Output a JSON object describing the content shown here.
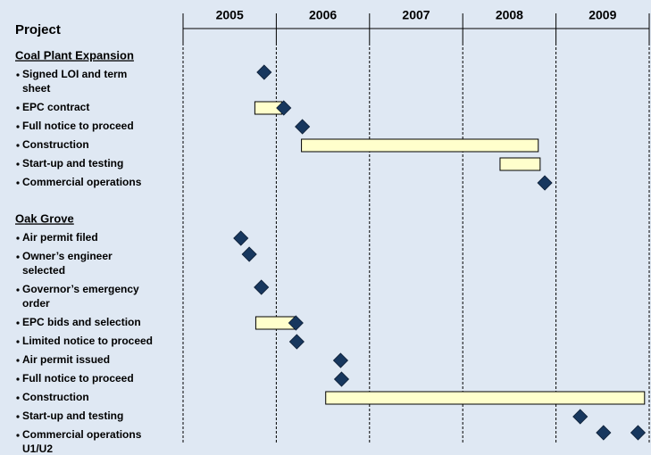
{
  "chart_data": {
    "type": "gantt",
    "title": "Project",
    "categories": [
      "2005",
      "2006",
      "2007",
      "2008",
      "2009"
    ],
    "xlim": [
      2005,
      2010
    ],
    "bar_color": "#ffffcc",
    "milestone_color": "#17375e",
    "groups": [
      {
        "name": "Coal Plant Expansion",
        "tasks": [
          {
            "label": [
              "Signed LOI and term",
              "sheet"
            ],
            "milestones": [
              2005.87
            ]
          },
          {
            "label": [
              "EPC contract"
            ],
            "bar": [
              2005.77,
              2006.06
            ],
            "milestones": [
              2006.08
            ]
          },
          {
            "label": [
              "Full notice to proceed"
            ],
            "milestones": [
              2006.28
            ]
          },
          {
            "label": [
              "Construction"
            ],
            "bar": [
              2006.27,
              2008.81
            ]
          },
          {
            "label": [
              "Start-up and testing"
            ],
            "bar": [
              2008.4,
              2008.83
            ]
          },
          {
            "label": [
              "Commercial operations"
            ],
            "milestones": [
              2008.88
            ]
          }
        ]
      },
      {
        "name": "Oak Grove",
        "tasks": [
          {
            "label": [
              "Air permit filed"
            ],
            "milestones": [
              2005.62
            ]
          },
          {
            "label": [
              "Owner’s engineer",
              "selected"
            ],
            "milestones": [
              2005.71
            ]
          },
          {
            "label": [
              "Governor’s emergency",
              "order"
            ],
            "milestones": [
              2005.84
            ]
          },
          {
            "label": [
              "EPC bids and selection"
            ],
            "bar": [
              2005.78,
              2006.21
            ],
            "milestones": [
              2006.21
            ]
          },
          {
            "label": [
              "Limited notice to proceed"
            ],
            "milestones": [
              2006.22
            ]
          },
          {
            "label": [
              "Air permit issued"
            ],
            "milestones": [
              2006.69
            ]
          },
          {
            "label": [
              "Full notice to proceed"
            ],
            "milestones": [
              2006.7
            ]
          },
          {
            "label": [
              "Construction"
            ],
            "bar": [
              2006.53,
              2009.95
            ]
          },
          {
            "label": [
              "Start-up and testing"
            ],
            "milestones": [
              2009.26
            ]
          },
          {
            "label": [
              "Commercial operations",
              "U1/U2"
            ],
            "milestones": [
              2009.51,
              2009.88
            ]
          }
        ]
      }
    ]
  }
}
